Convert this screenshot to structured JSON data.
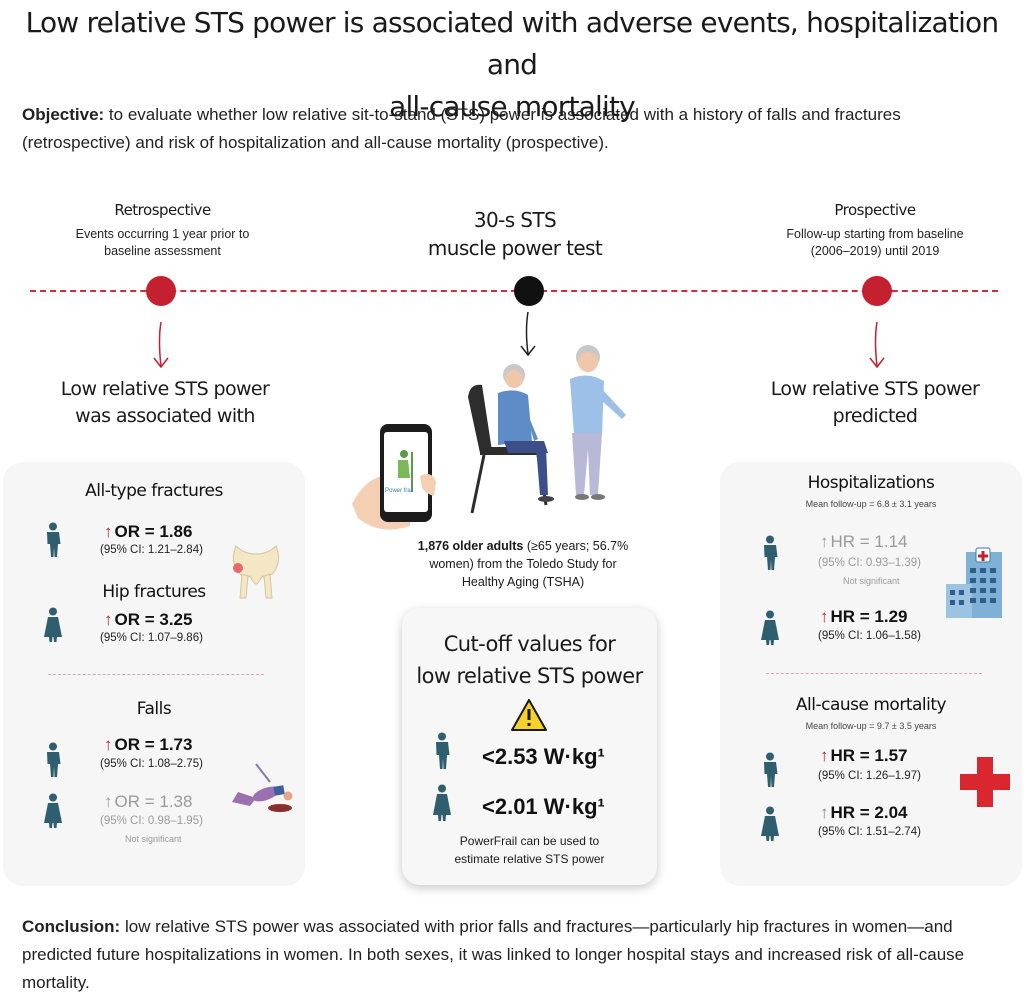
{
  "title_line1": "Low relative STS power is associated with adverse events, hospitalization and",
  "title_line2": "all-cause mortality",
  "objective": {
    "label": "Objective:",
    "text": " to evaluate whether low relative sit-to-stand (STS) power is associated with a history of falls and fractures (retrospective) and risk of hospitalization and all-cause mortality (prospective)."
  },
  "retrospective": {
    "heading": "Retrospective",
    "sub_line1": "Events occurring 1 year prior to",
    "sub_line2": "baseline assessment",
    "result_line1": "Low relative STS power",
    "result_line2": "was associated with"
  },
  "center": {
    "heading_line1": "30-s STS",
    "heading_line2": "muscle power test",
    "phone_label": "Power frail",
    "study_bold": "1,876 older adults",
    "study_rest_line1": " (≥65 years; 56.7%",
    "study_line2": "women) from the Toledo Study for",
    "study_line3": "Healthy Aging (TSHA)"
  },
  "prospective": {
    "heading": "Prospective",
    "sub_line1": "Follow-up starting from baseline",
    "sub_line2": "(2006–2019) until 2019",
    "result_line1": "Low relative STS power",
    "result_line2": "predicted"
  },
  "left_panel": {
    "all_fractures": {
      "title": "All-type fractures",
      "stat": "OR = 1.86",
      "ci": "(95% CI: 1.21–2.84)"
    },
    "hip_fractures": {
      "title": "Hip fractures",
      "stat": "OR = 3.25",
      "ci": "(95% CI: 1.07–9.86)"
    },
    "falls": {
      "title": "Falls",
      "men_stat": "OR = 1.73",
      "men_ci": "(95% CI: 1.08–2.75)",
      "women_stat": "OR = 1.38",
      "women_ci": "(95% CI: 0.98–1.95)",
      "women_note": "Not significant"
    }
  },
  "right_panel": {
    "hospitalizations": {
      "title": "Hospitalizations",
      "followup": "Mean follow-up = 6.8 ± 3.1 years",
      "men_stat": "HR = 1.14",
      "men_ci": "(95% CI: 0.93–1.39)",
      "men_note": "Not significant",
      "women_stat": "HR = 1.29",
      "women_ci": "(95% CI: 1.06–1.58)"
    },
    "mortality": {
      "title": "All-cause mortality",
      "followup": "Mean follow-up = 9.7 ± 3.5 years",
      "men_stat": "HR = 1.57",
      "men_ci": "(95% CI: 1.26–1.97)",
      "women_stat": "HR = 2.04",
      "women_ci": "(95% CI: 1.51–2.74)"
    }
  },
  "cutoff": {
    "title_line1": "Cut-off values for",
    "title_line2": "low relative STS power",
    "men_value": "<2.53 W·kg¹",
    "women_value": "<2.01 W·kg¹",
    "foot_line1": "PowerFrail can be used to",
    "foot_line2": "estimate relative STS power"
  },
  "conclusion": {
    "label": "Conclusion:",
    "text": " low relative STS power was associated with prior falls and fractures—particularly hip fractures in women—and predicted future hospitalizations in women. In both sexes, it was linked to longer hospital stays and increased risk of all-cause mortality."
  },
  "colors": {
    "accent_red": "#c4202f",
    "person_teal": "#2f5f6f",
    "panel_bg": "#f6f6f6"
  }
}
